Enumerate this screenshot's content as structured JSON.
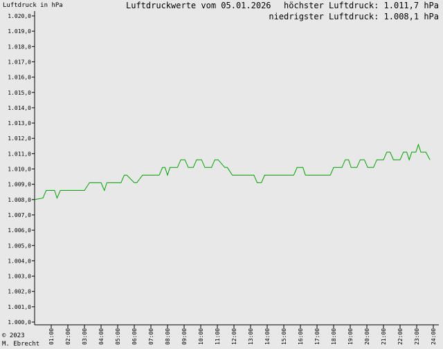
{
  "header": {
    "title": "Luftdruckwerte vom 05.01.2026",
    "y_unit_label": "Luftdruck in hPa",
    "max_label": "höchster Luftdruck: 1.011,7 hPa",
    "min_label": "niedrigster Luftdruck: 1.008,1 hPa"
  },
  "footer": {
    "copyright": "© 2023",
    "author": "M. Ebrecht"
  },
  "colors": {
    "background": "#e8e8e8",
    "line": "#00a000",
    "axis": "#000000"
  },
  "chart_data": {
    "type": "line",
    "title": "Luftdruckwerte vom 05.01.2026",
    "ylabel": "Luftdruck in hPa",
    "xlabel": "",
    "ylim": [
      1000.0,
      1020.0
    ],
    "xlim": [
      0,
      24
    ],
    "grid": false,
    "y_ticks": [
      "1.000,0",
      "1.001,0",
      "1.002,0",
      "1.003,0",
      "1.004,0",
      "1.005,0",
      "1.006,0",
      "1.007,0",
      "1.008,0",
      "1.009,0",
      "1.010,0",
      "1.011,0",
      "1.012,0",
      "1.013,0",
      "1.014,0",
      "1.015,0",
      "1.016,0",
      "1.017,0",
      "1.018,0",
      "1.019,0",
      "1.020,0"
    ],
    "x_ticks": [
      "01:00",
      "02:00",
      "03:00",
      "04:00",
      "05:00",
      "06:00",
      "07:00",
      "08:00",
      "09:00",
      "10:00",
      "11:00",
      "12:00",
      "13:00",
      "14:00",
      "15:00",
      "16:00",
      "17:00",
      "18:00",
      "19:00",
      "20:00",
      "21:00",
      "22:00",
      "23:00",
      "24:00"
    ],
    "series": [
      {
        "x": [
          0.0,
          0.5,
          0.7,
          1.2,
          1.35,
          1.55,
          3.0,
          3.3,
          4.0,
          4.2,
          4.35,
          5.0,
          5.2,
          5.4,
          5.55,
          6.0,
          6.15,
          6.5,
          7.5,
          7.7,
          7.85,
          8.0,
          8.15,
          8.6,
          8.8,
          9.05,
          9.25,
          9.55,
          9.75,
          10.05,
          10.25,
          10.65,
          10.85,
          11.05,
          11.45,
          11.6,
          11.9,
          12.0,
          13.2,
          13.4,
          13.65,
          13.85,
          14.0,
          15.6,
          15.8,
          16.15,
          16.3,
          17.8,
          18.0,
          18.5,
          18.7,
          18.9,
          19.05,
          19.4,
          19.6,
          19.85,
          20.05,
          20.4,
          20.6,
          21.0,
          21.2,
          21.4,
          21.6,
          22.0,
          22.2,
          22.4,
          22.55,
          22.7,
          22.95,
          23.1,
          23.25,
          23.55,
          23.8
        ],
        "y": [
          1008.0,
          1008.1,
          1008.6,
          1008.6,
          1008.1,
          1008.6,
          1008.6,
          1009.1,
          1009.1,
          1008.6,
          1009.1,
          1009.1,
          1009.1,
          1009.6,
          1009.6,
          1009.1,
          1009.1,
          1009.6,
          1009.6,
          1010.1,
          1010.1,
          1009.6,
          1010.1,
          1010.1,
          1010.6,
          1010.6,
          1010.1,
          1010.1,
          1010.6,
          1010.6,
          1010.1,
          1010.1,
          1010.6,
          1010.6,
          1010.1,
          1010.1,
          1009.6,
          1009.6,
          1009.6,
          1009.1,
          1009.1,
          1009.6,
          1009.6,
          1009.6,
          1010.1,
          1010.1,
          1009.6,
          1009.6,
          1010.1,
          1010.1,
          1010.6,
          1010.6,
          1010.1,
          1010.1,
          1010.6,
          1010.6,
          1010.1,
          1010.1,
          1010.6,
          1010.6,
          1011.1,
          1011.1,
          1010.6,
          1010.6,
          1011.1,
          1011.1,
          1010.6,
          1011.1,
          1011.1,
          1011.6,
          1011.1,
          1011.1,
          1010.6
        ]
      }
    ]
  }
}
